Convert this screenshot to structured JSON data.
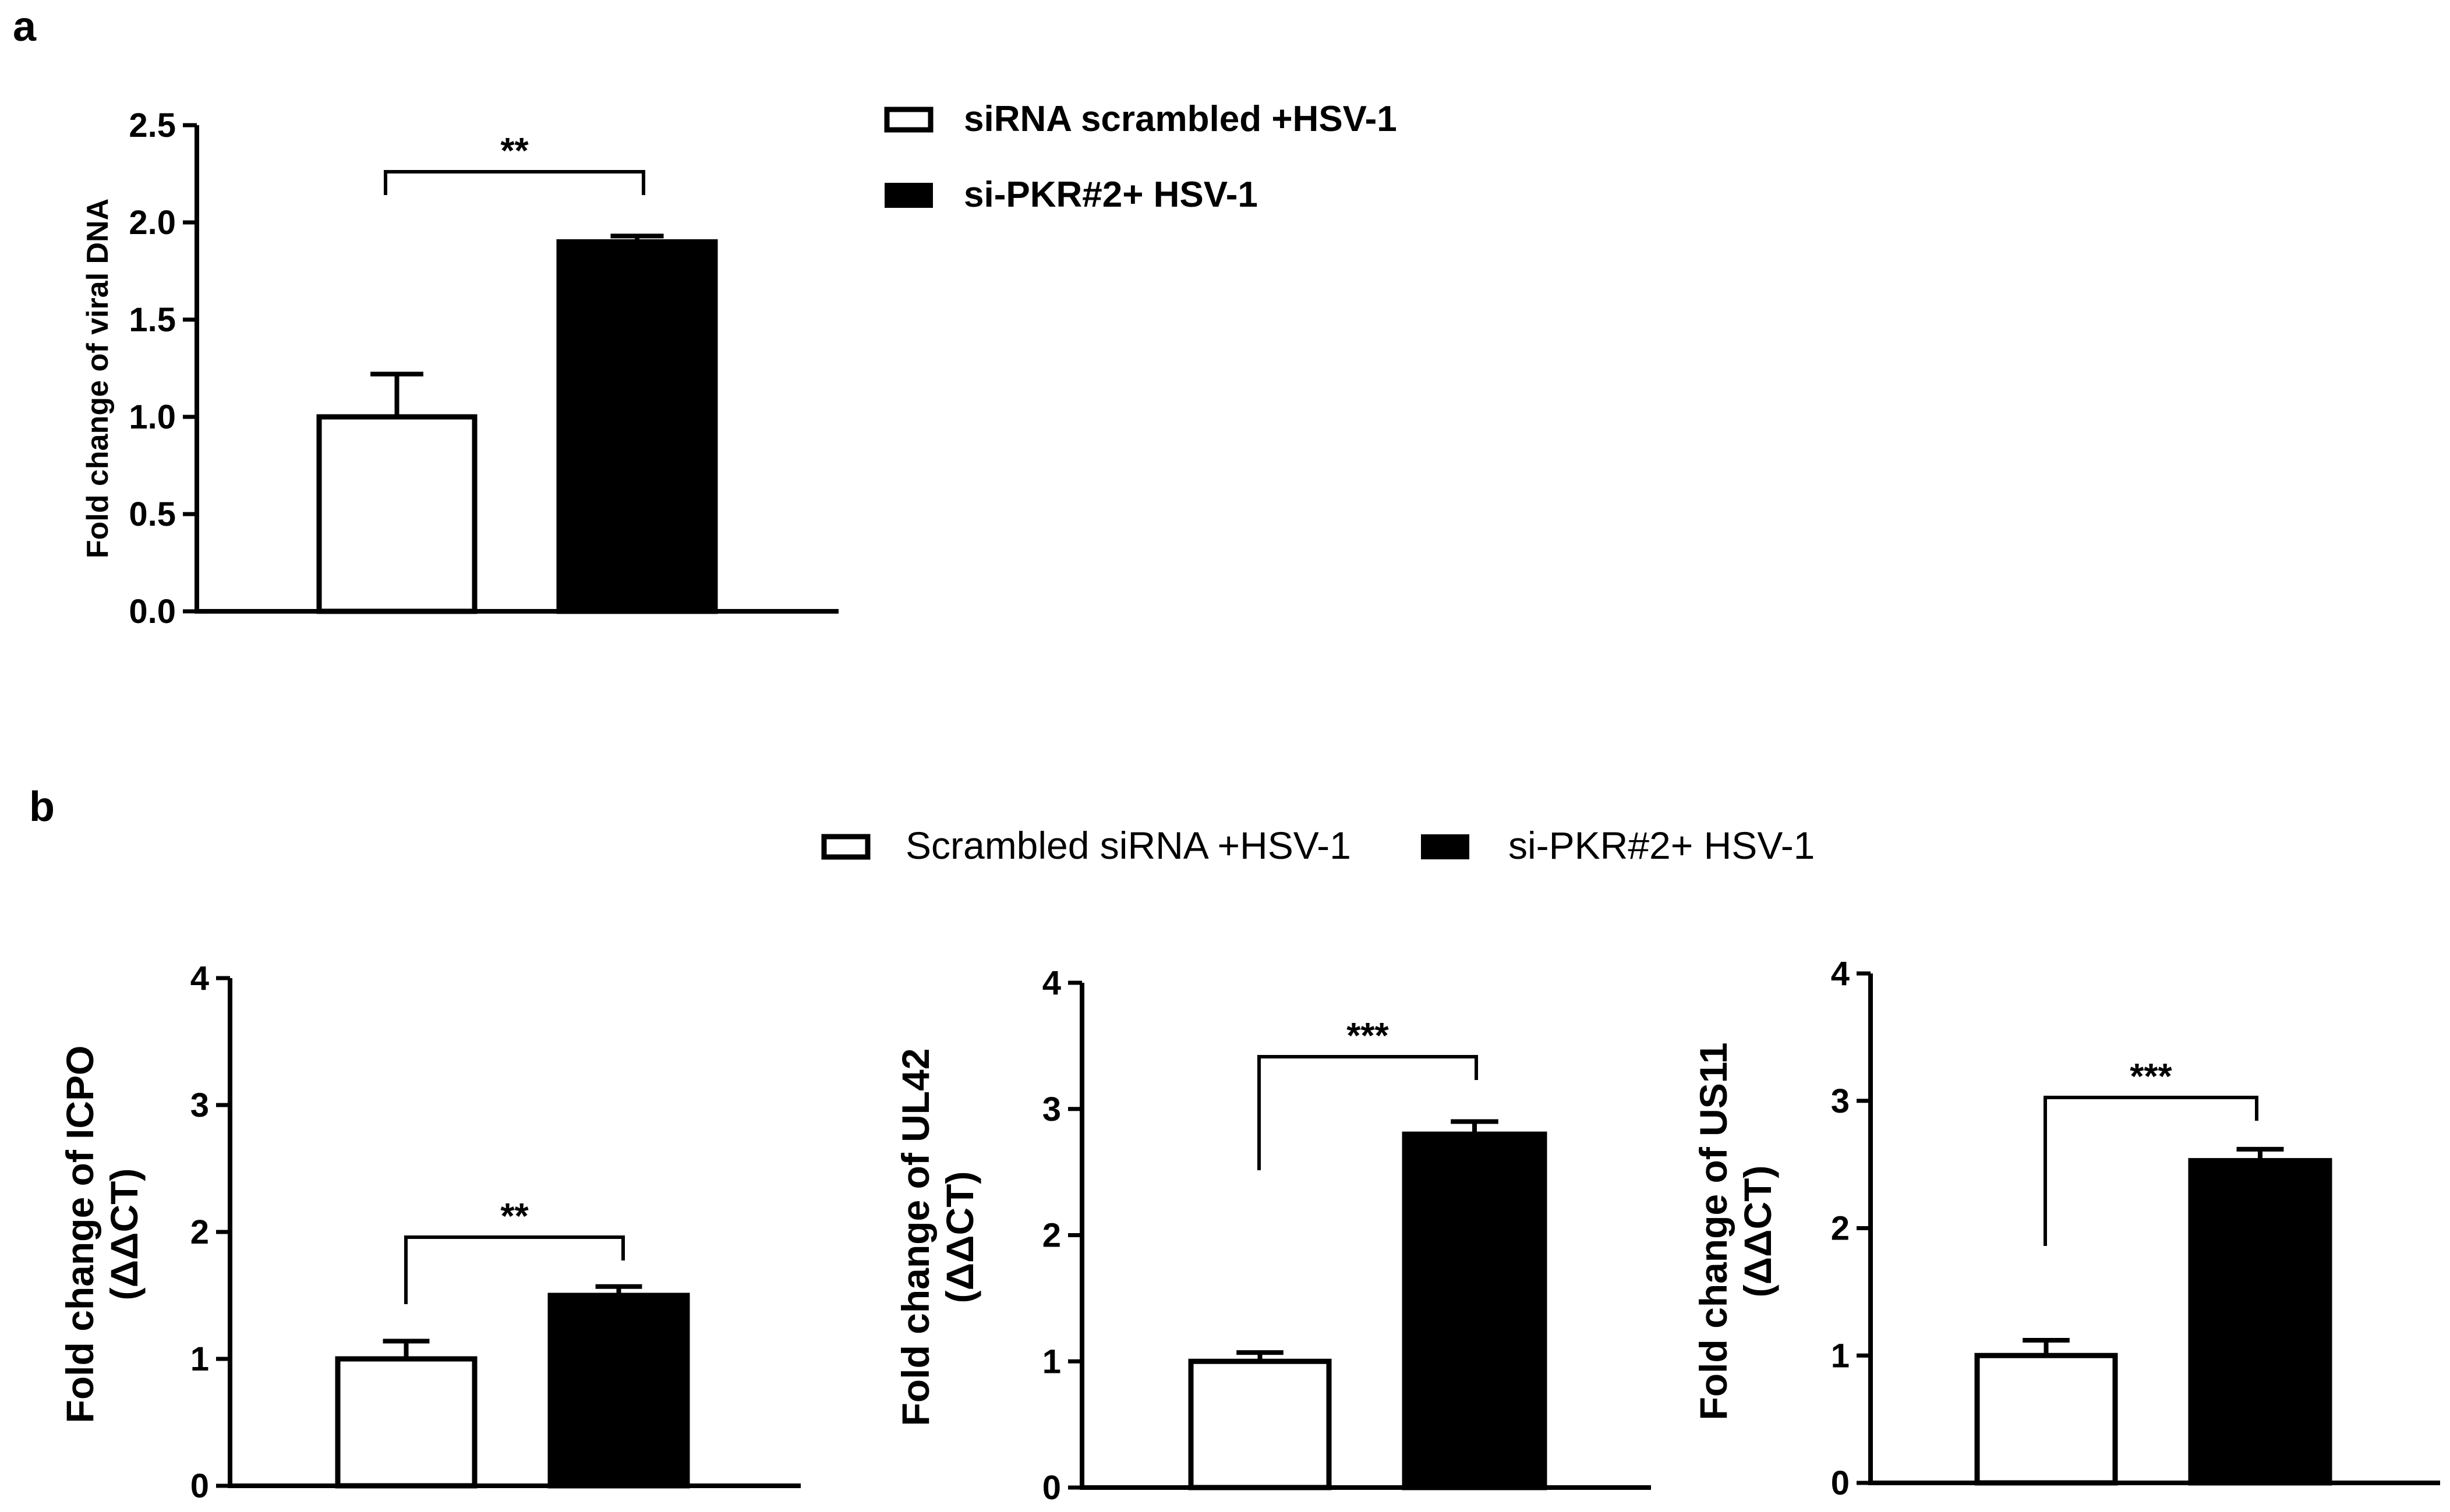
{
  "panels": {
    "a": "a",
    "b": "b"
  },
  "legend_a": [
    {
      "label": "siRNA scrambled +HSV-1",
      "fill": "#ffffff"
    },
    {
      "label": "si-PKR#2+ HSV-1",
      "fill": "#000000"
    }
  ],
  "legend_b": [
    {
      "label": "Scrambled siRNA +HSV-1",
      "fill": "#ffffff"
    },
    {
      "label": "si-PKR#2+ HSV-1",
      "fill": "#000000"
    }
  ],
  "chart_data": [
    {
      "type": "bar",
      "panel": "a",
      "title": "",
      "xlabel": "",
      "ylabel": "Fold change of viral DNA",
      "ylim": [
        0,
        2.5
      ],
      "yticks": [
        "0.0",
        "0.5",
        "1.0",
        "1.5",
        "2.0",
        "2.5"
      ],
      "series": [
        {
          "values": [
            1.0
          ],
          "error": [
            0.22
          ],
          "color": "#ffffff"
        },
        {
          "values": [
            1.9
          ],
          "error": [
            0.03
          ],
          "color": "#000000"
        }
      ],
      "significance": "**"
    },
    {
      "type": "bar",
      "panel": "b",
      "title": "",
      "xlabel": "",
      "ylabel": [
        "Fold change of ICPO",
        "(ΔΔCT)"
      ],
      "ylim": [
        0,
        4
      ],
      "yticks": [
        "0",
        "1",
        "2",
        "3",
        "4"
      ],
      "series": [
        {
          "values": [
            1.0
          ],
          "error": [
            0.14
          ],
          "color": "#ffffff"
        },
        {
          "values": [
            1.5
          ],
          "error": [
            0.07
          ],
          "color": "#000000"
        }
      ],
      "significance": "**"
    },
    {
      "type": "bar",
      "panel": "b",
      "title": "",
      "xlabel": "",
      "ylabel": [
        "Fold change of UL42",
        "(ΔΔCT)"
      ],
      "ylim": [
        0,
        4
      ],
      "yticks": [
        "0",
        "1",
        "2",
        "3",
        "4"
      ],
      "series": [
        {
          "values": [
            1.0
          ],
          "error": [
            0.07
          ],
          "color": "#ffffff"
        },
        {
          "values": [
            2.8
          ],
          "error": [
            0.1
          ],
          "color": "#000000"
        }
      ],
      "significance": "***"
    },
    {
      "type": "bar",
      "panel": "b",
      "title": "",
      "xlabel": "",
      "ylabel": [
        "Fold change of US11",
        "(ΔΔCT)"
      ],
      "ylim": [
        0,
        4
      ],
      "yticks": [
        "0",
        "1",
        "2",
        "3",
        "4"
      ],
      "series": [
        {
          "values": [
            1.0
          ],
          "error": [
            0.12
          ],
          "color": "#ffffff"
        },
        {
          "values": [
            2.53
          ],
          "error": [
            0.09
          ],
          "color": "#000000"
        }
      ],
      "significance": "***"
    }
  ]
}
